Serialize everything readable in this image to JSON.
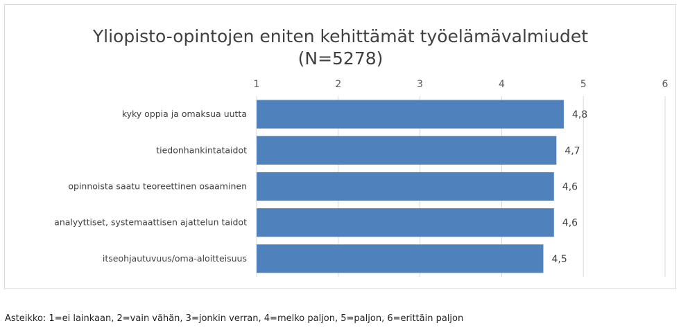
{
  "chart_data": {
    "type": "bar",
    "orientation": "horizontal",
    "title": "Yliopisto-opintojen eniten kehittämät työelämävalmiudet",
    "subtitle": "(N=5278)",
    "categories": [
      "kyky oppia ja omaksua uutta",
      "tiedonhankintataidot",
      "opinnoista saatu teoreettinen osaaminen",
      "analyyttiset, systemaattisen ajattelun taidot",
      "itseohjautuvuus/oma-aloitteisuus"
    ],
    "values": [
      4.76,
      4.67,
      4.64,
      4.64,
      4.51
    ],
    "data_labels": [
      "4,8",
      "4,7",
      "4,6",
      "4,6",
      "4,5"
    ],
    "xlim": [
      1,
      6
    ],
    "ticks": [
      "1",
      "2",
      "3",
      "4",
      "5",
      "6"
    ],
    "axis_position": "top",
    "grid": "vertical",
    "bar_color": "#4f81bd"
  },
  "footnote": "Asteikko: 1=ei lainkaan, 2=vain vähän, 3=jonkin verran, 4=melko paljon, 5=paljon, 6=erittäin paljon"
}
